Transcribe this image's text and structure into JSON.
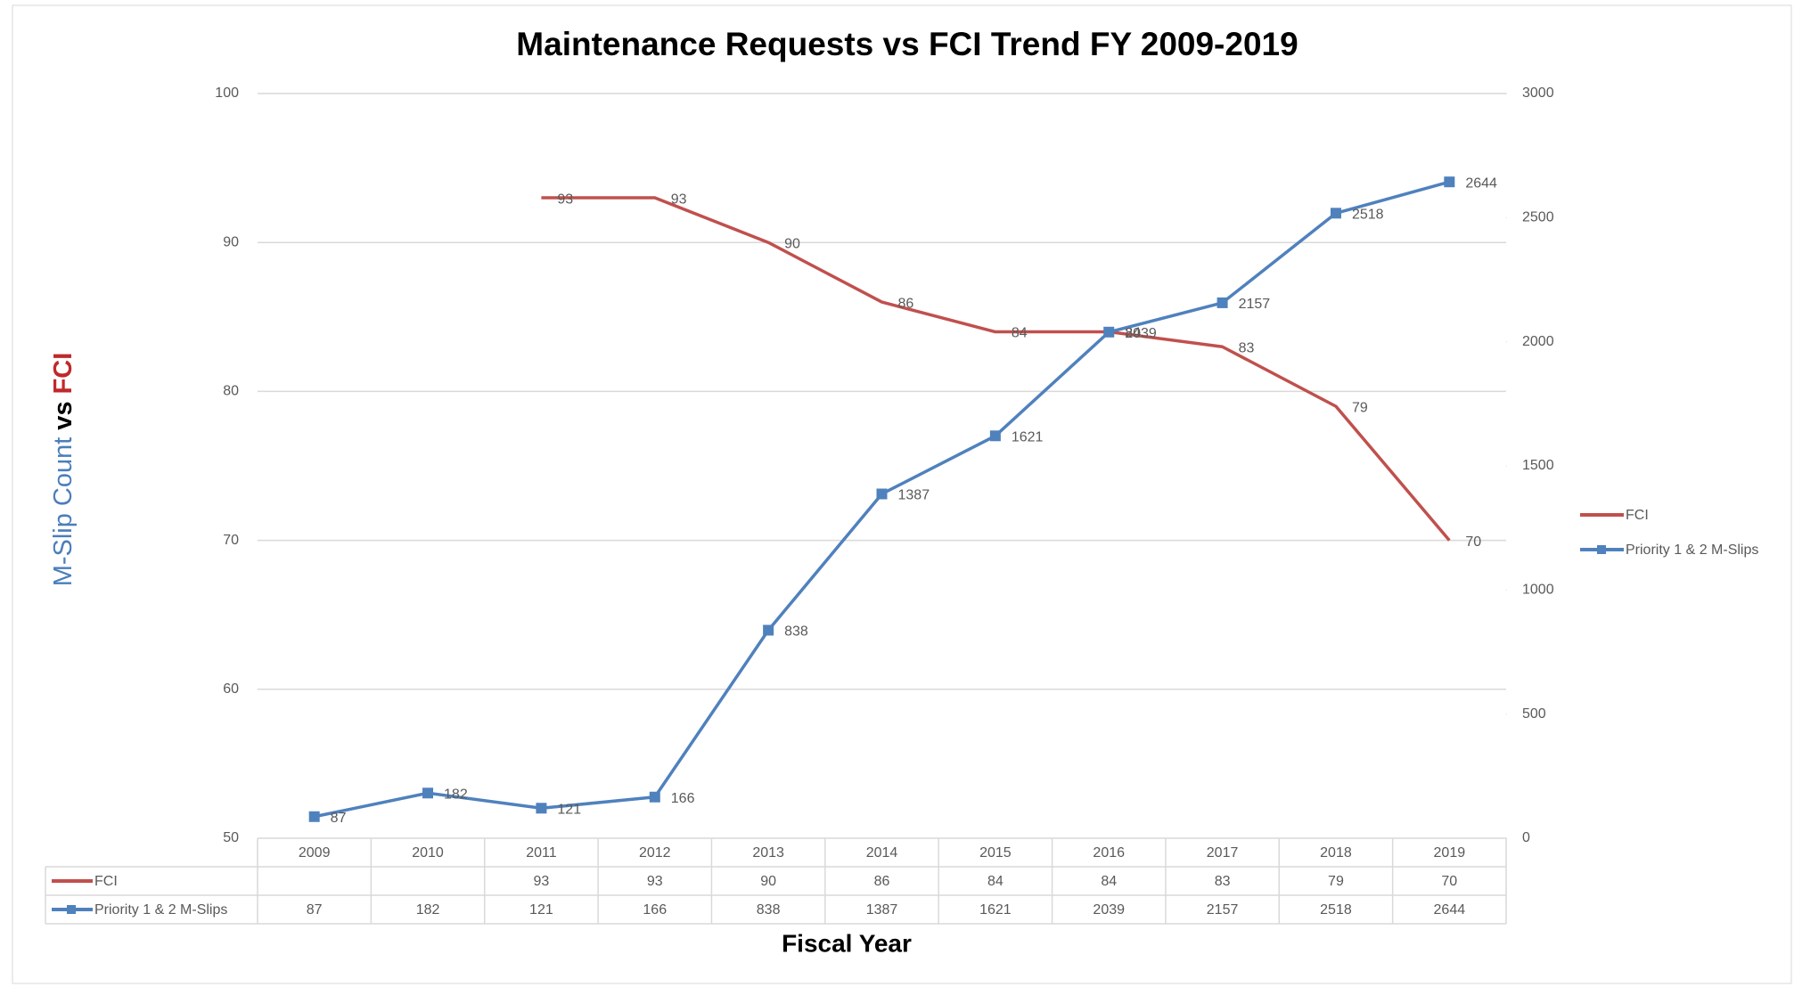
{
  "chart_data": {
    "type": "line",
    "title": "Maintenance Requests vs FCI Trend FY 2009-2019",
    "xlabel": "Fiscal Year",
    "ylabel": [
      {
        "text": "M-Slip Count",
        "color": "#4a7ebb"
      },
      {
        "text": "vs",
        "color": "#000000"
      },
      {
        "text": "FCI",
        "color": "#c0282a"
      }
    ],
    "categories": [
      "2009",
      "2010",
      "2011",
      "2012",
      "2013",
      "2014",
      "2015",
      "2016",
      "2017",
      "2018",
      "2019"
    ],
    "series": [
      {
        "name": "FCI",
        "color": "#c0504d",
        "marker": false,
        "values": [
          null,
          null,
          93,
          93,
          90,
          86,
          84,
          84,
          83,
          79,
          70
        ]
      },
      {
        "name": "Priority 1 & 2 M-Slips",
        "color": "#4f81bd",
        "marker": true,
        "axis": "y2",
        "values": [
          87,
          182,
          121,
          166,
          838,
          1387,
          1621,
          2039,
          2157,
          2518,
          2644
        ]
      }
    ],
    "ylim": [
      50,
      100
    ],
    "yticks": [
      50,
      60,
      70,
      80,
      90,
      100
    ],
    "y2lim": [
      0,
      3000
    ],
    "y2ticks": [
      0,
      500,
      1000,
      1500,
      2000,
      2500,
      3000
    ],
    "grid": true,
    "legend": "right",
    "data_table": true
  }
}
